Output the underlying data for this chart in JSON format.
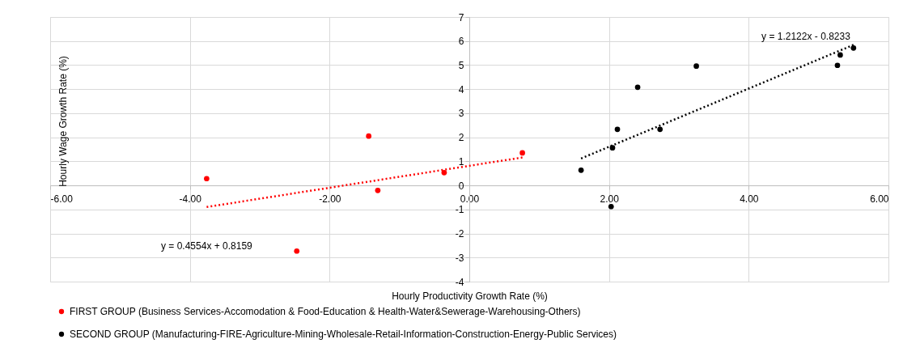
{
  "chart_data": {
    "type": "scatter",
    "xlabel": "Hourly Productivity  Growth Rate (%)",
    "ylabel": "Hourly Wage Growth Rate (%)",
    "xlim": [
      -6,
      6
    ],
    "ylim": [
      -4,
      7
    ],
    "xticks": [
      {
        "value": -6,
        "label": "-6.00"
      },
      {
        "value": -4,
        "label": "-4.00"
      },
      {
        "value": -2,
        "label": "-2.00"
      },
      {
        "value": 0,
        "label": "0.00"
      },
      {
        "value": 2,
        "label": "2.00"
      },
      {
        "value": 4,
        "label": "4.00"
      },
      {
        "value": 6,
        "label": "6.00"
      }
    ],
    "yticks": [
      -4,
      -3,
      -2,
      -1,
      0,
      1,
      2,
      3,
      4,
      5,
      6,
      7
    ],
    "grid": true,
    "legend": "bottom",
    "marker": "circle",
    "series": [
      {
        "name": "FIRST GROUP (Business Services-Accomodation & Food-Education & Health-Water&Sewerage-Warehousing-Others)",
        "color": "#ff0000",
        "x": [
          -3.76,
          -2.47,
          -1.44,
          -1.31,
          -0.36,
          0.76
        ],
        "values": [
          0.28,
          -2.73,
          2.05,
          -0.21,
          0.53,
          1.35
        ]
      },
      {
        "name": "SECOND GROUP (Manufacturing-FIRE-Agriculture-Mining-Wholesale-Retail-Information-Construction-Energy-Public Services)",
        "color": "#000000",
        "x": [
          1.6,
          2.03,
          2.05,
          2.12,
          2.41,
          2.73,
          3.25,
          5.27,
          5.31,
          5.5
        ],
        "values": [
          0.63,
          -0.88,
          1.56,
          2.33,
          4.08,
          2.33,
          4.96,
          4.99,
          5.42,
          5.71
        ]
      },
      {
        "type": "line",
        "line_style": "dotted",
        "marker": "none",
        "color": "#ff0000",
        "x": [
          -3.76,
          0.76
        ],
        "values": [
          -0.9,
          1.16
        ]
      },
      {
        "type": "line",
        "line_style": "dotted",
        "marker": "none",
        "color": "#000000",
        "x": [
          1.6,
          5.5
        ],
        "values": [
          1.12,
          5.84
        ]
      }
    ],
    "annotations": [
      "y = 0.4554x + 0.8159",
      "y = 1.2122x - 0.8233"
    ]
  }
}
